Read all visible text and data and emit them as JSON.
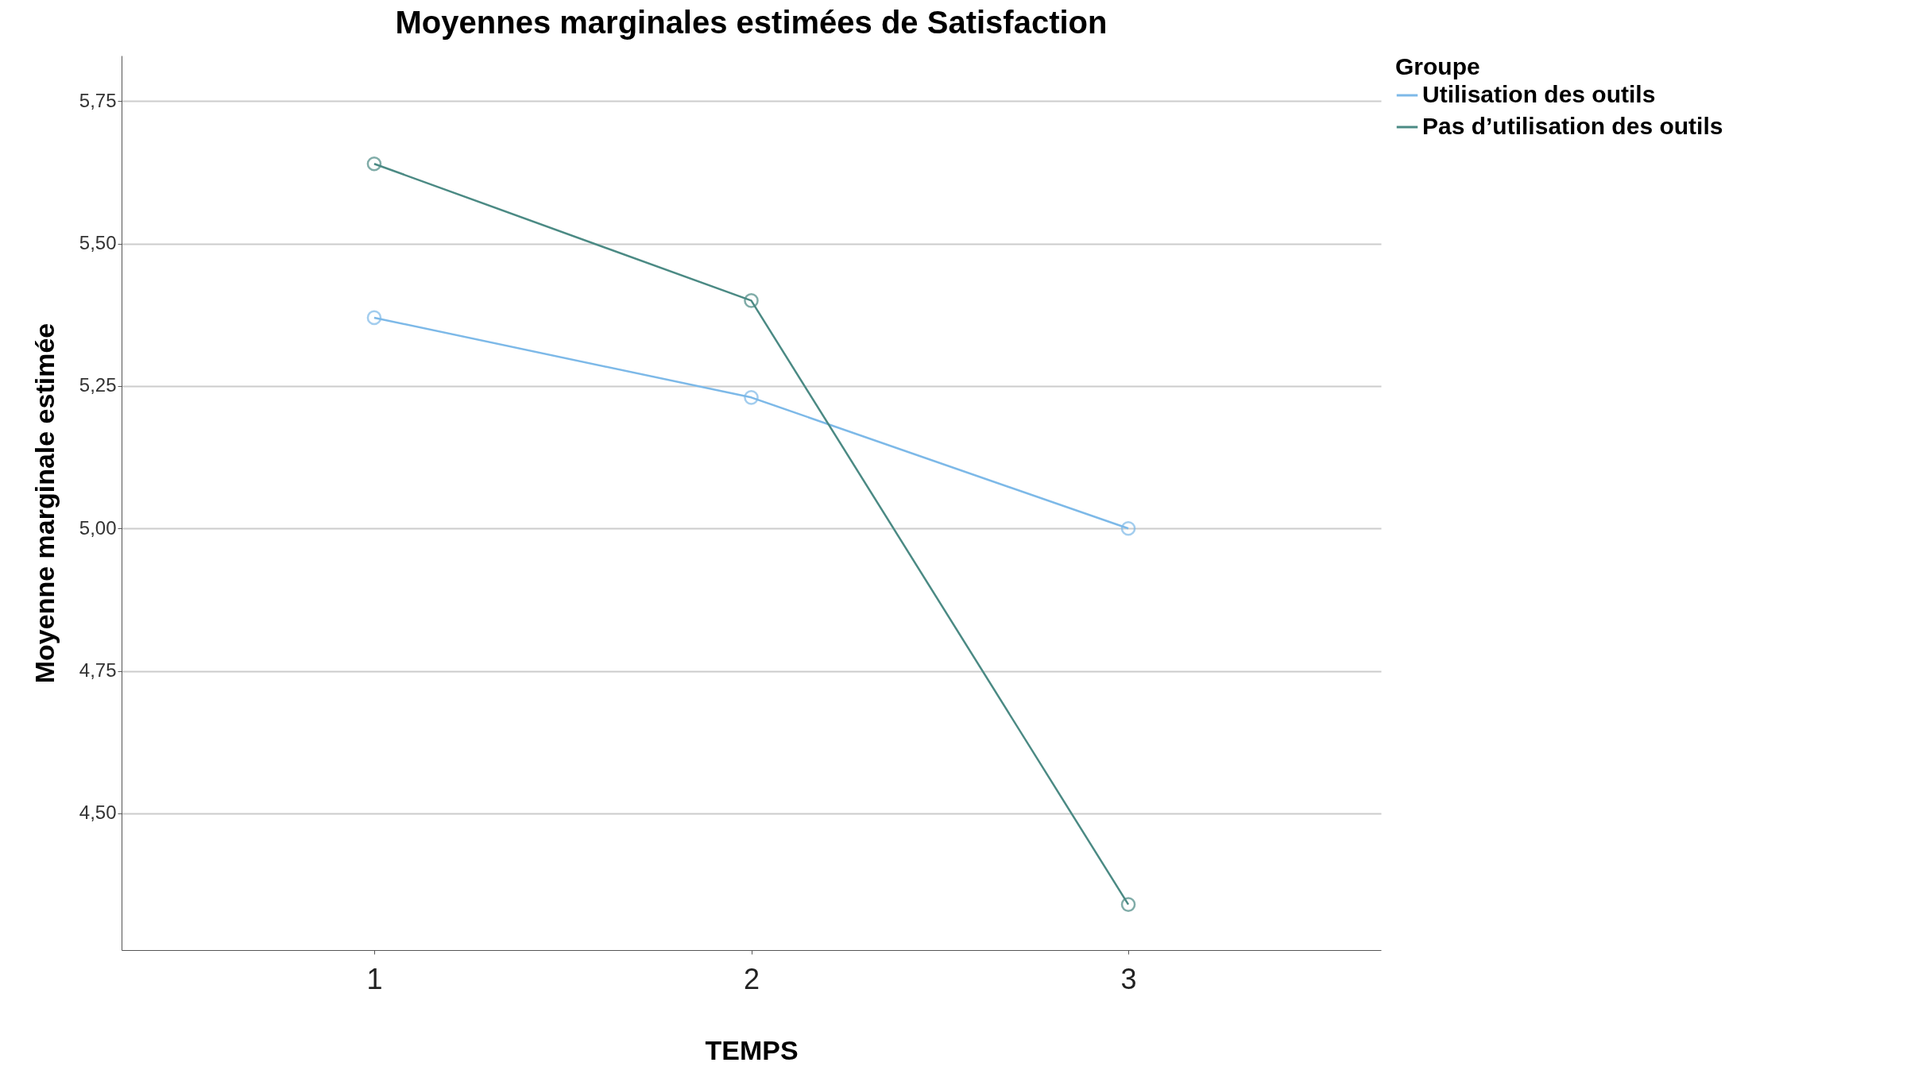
{
  "chart_data": {
    "type": "line",
    "title": "Moyennes marginales estimées de Satisfaction",
    "xlabel": "TEMPS",
    "ylabel": "Moyenne marginale estimée",
    "legend_title": "Groupe",
    "categories": [
      "1",
      "2",
      "3"
    ],
    "series": [
      {
        "name": "Utilisation des outils",
        "color": "#7db9e8",
        "values": [
          5.37,
          5.23,
          5.0
        ]
      },
      {
        "name": "Pas d’utilisation des outils",
        "color": "#4b8a84",
        "values": [
          5.64,
          5.4,
          4.34
        ]
      }
    ],
    "ylim": [
      4.26,
      5.83
    ],
    "yticks": [
      {
        "value": 4.5,
        "label": "4,50"
      },
      {
        "value": 4.75,
        "label": "4,75"
      },
      {
        "value": 5,
        "label": "5,00"
      },
      {
        "value": 5.25,
        "label": "5,25"
      },
      {
        "value": 5.5,
        "label": "5,50"
      },
      {
        "value": 5.75,
        "label": "5,75"
      }
    ],
    "grid": "y",
    "legend": "top right",
    "marker": "circle",
    "line_style": "solid"
  }
}
